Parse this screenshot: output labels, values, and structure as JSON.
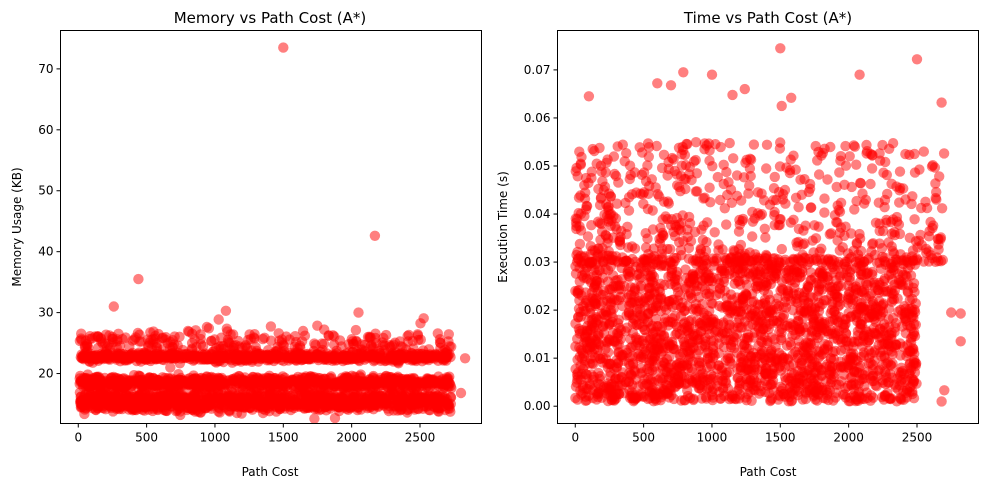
{
  "chart_data": [
    {
      "type": "scatter",
      "title": "Memory vs Path Cost (A*)",
      "xlabel": "Path Cost",
      "ylabel": "Memory Usage (KB)",
      "xlim": [
        -130,
        2950
      ],
      "ylim": [
        11.8,
        76.3
      ],
      "xticks": [
        0,
        500,
        1000,
        1500,
        2000,
        2500
      ],
      "yticks": [
        20,
        30,
        40,
        50,
        60,
        70
      ],
      "color": "#ff0000",
      "alpha": 0.5,
      "grid": false,
      "bands": [
        {
          "y": 14.9,
          "spread": 1.1,
          "count": 700
        },
        {
          "y": 16.1,
          "spread": 0.9,
          "count": 500
        },
        {
          "y": 18.3,
          "spread": 0.8,
          "count": 650
        },
        {
          "y": 19.1,
          "spread": 0.6,
          "count": 250
        },
        {
          "y": 22.7,
          "spread": 0.7,
          "count": 700
        },
        {
          "y": 25.0,
          "spread": 2.5,
          "count": 280
        }
      ],
      "outliers": [
        {
          "x": 1500,
          "y": 73.5
        },
        {
          "x": 2170,
          "y": 42.6
        },
        {
          "x": 440,
          "y": 35.5
        },
        {
          "x": 260,
          "y": 31.0
        },
        {
          "x": 1080,
          "y": 30.3
        },
        {
          "x": 2050,
          "y": 30.0
        },
        {
          "x": 2800,
          "y": 16.8
        },
        {
          "x": 2830,
          "y": 22.5
        }
      ]
    },
    {
      "type": "scatter",
      "title": "Time vs Path Cost (A*)",
      "xlabel": "Path Cost",
      "ylabel": "Execution Time (s)",
      "xlim": [
        -130,
        2950
      ],
      "ylim": [
        -0.0036,
        0.0782
      ],
      "xticks": [
        0,
        500,
        1000,
        1500,
        2000,
        2500
      ],
      "yticks": [
        0.0,
        0.01,
        0.02,
        0.03,
        0.04,
        0.05,
        0.06,
        0.07
      ],
      "color": "#ff0000",
      "alpha": 0.5,
      "grid": false,
      "dense_region": {
        "x": [
          0,
          2500
        ],
        "y": [
          0.0,
          0.03
        ],
        "count": 2200
      },
      "sparse_region": {
        "x": [
          0,
          2700
        ],
        "y": [
          0.03,
          0.055
        ],
        "count": 600
      },
      "outliers": [
        {
          "x": 1500,
          "y": 0.0745
        },
        {
          "x": 2500,
          "y": 0.0722
        },
        {
          "x": 790,
          "y": 0.0695
        },
        {
          "x": 1000,
          "y": 0.069
        },
        {
          "x": 2080,
          "y": 0.069
        },
        {
          "x": 600,
          "y": 0.0672
        },
        {
          "x": 700,
          "y": 0.0668
        },
        {
          "x": 1240,
          "y": 0.066
        },
        {
          "x": 100,
          "y": 0.0645
        },
        {
          "x": 1150,
          "y": 0.0648
        },
        {
          "x": 1580,
          "y": 0.0642
        },
        {
          "x": 2680,
          "y": 0.0632
        },
        {
          "x": 1510,
          "y": 0.0625
        },
        {
          "x": 2550,
          "y": 0.053
        },
        {
          "x": 2750,
          "y": 0.0195
        },
        {
          "x": 2820,
          "y": 0.0193
        },
        {
          "x": 2820,
          "y": 0.0135
        },
        {
          "x": 2700,
          "y": 0.0033
        },
        {
          "x": 2680,
          "y": 0.001
        }
      ]
    }
  ]
}
